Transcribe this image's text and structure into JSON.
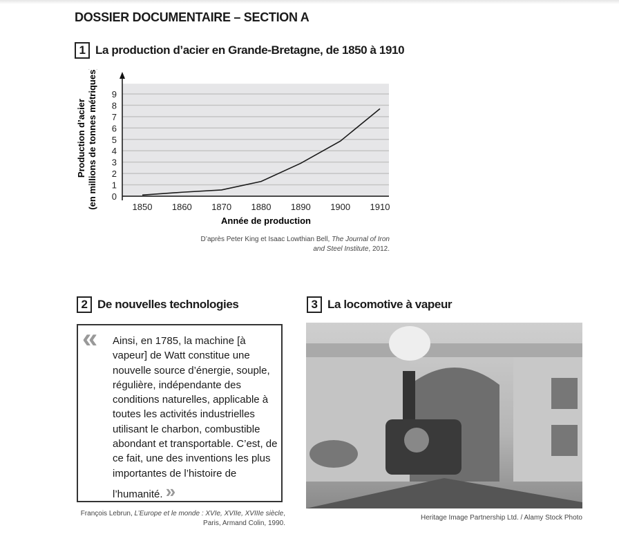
{
  "title": "DOSSIER DOCUMENTAIRE – SECTION A",
  "doc1": {
    "number": "1",
    "title": "La production d’acier en Grande-Bretagne, de 1850 à 1910",
    "source_line1": "D’après Peter King et Isaac Lowthian Bell, ",
    "source_italic1": "The Journal of Iron",
    "source_italic2": "and Steel Institute",
    "source_end": ", 2012."
  },
  "doc2": {
    "number": "2",
    "title": "De nouvelles technologies",
    "quote": "Ainsi, en 1785, la machine [à vapeur] de Watt constitue une nouvelle source d’énergie, souple, régulière, indépendante des conditions naturelles, applicable à toutes les activités industrielles utilisant le charbon, combustible abondant et transportable. C’est, de ce fait, une des inventions les plus importantes de l’histoire de l’humanité.",
    "open_mark": "«",
    "close_mark": "»",
    "source_a": "François Lebrun, ",
    "source_italic": "L’Europe et le monde : XVIe, XVIIe, XVIIIe siècle",
    "source_b": ",",
    "source_line2": "Paris, Armand Colin, 1990."
  },
  "doc3": {
    "number": "3",
    "title": "La locomotive à vapeur",
    "credit": "Heritage Image Partnership Ltd. / Alamy Stock Photo"
  },
  "chart_data": {
    "type": "line",
    "xlabel": "Année de production",
    "ylabel": "Production d’acier",
    "ylabel2": "(en millions de tonnes métriques)",
    "x": [
      1850,
      1860,
      1870,
      1880,
      1890,
      1900,
      1910
    ],
    "values": [
      0.1,
      0.35,
      0.55,
      1.3,
      2.9,
      4.85,
      7.7
    ],
    "yticks": [
      0,
      1,
      2,
      3,
      4,
      5,
      6,
      7,
      8,
      9
    ],
    "ylim": [
      0,
      9.9
    ],
    "grid": true,
    "line_color": "#1a1a1a",
    "background": "#e6e6e8"
  }
}
